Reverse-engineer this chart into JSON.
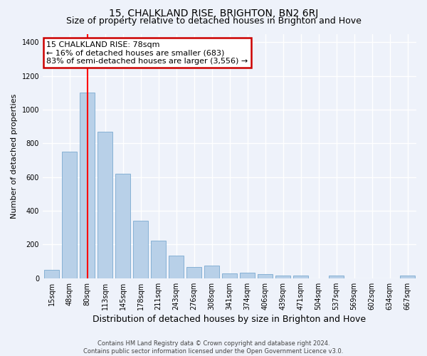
{
  "title": "15, CHALKLAND RISE, BRIGHTON, BN2 6RJ",
  "subtitle": "Size of property relative to detached houses in Brighton and Hove",
  "xlabel": "Distribution of detached houses by size in Brighton and Hove",
  "ylabel": "Number of detached properties",
  "footer1": "Contains HM Land Registry data © Crown copyright and database right 2024.",
  "footer2": "Contains public sector information licensed under the Open Government Licence v3.0.",
  "categories": [
    "15sqm",
    "48sqm",
    "80sqm",
    "113sqm",
    "145sqm",
    "178sqm",
    "211sqm",
    "243sqm",
    "276sqm",
    "308sqm",
    "341sqm",
    "374sqm",
    "406sqm",
    "439sqm",
    "471sqm",
    "504sqm",
    "537sqm",
    "569sqm",
    "602sqm",
    "634sqm",
    "667sqm"
  ],
  "values": [
    50,
    750,
    1100,
    870,
    620,
    340,
    225,
    135,
    65,
    75,
    30,
    35,
    25,
    15,
    15,
    0,
    15,
    0,
    0,
    0,
    15
  ],
  "bar_color": "#b8d0e8",
  "bar_edge_color": "#7aaad0",
  "redline_x": 2,
  "annotation_line1": "15 CHALKLAND RISE: 78sqm",
  "annotation_line2": "← 16% of detached houses are smaller (683)",
  "annotation_line3": "83% of semi-detached houses are larger (3,556) →",
  "annotation_box_color": "#cc0000",
  "ylim": [
    0,
    1450
  ],
  "yticks": [
    0,
    200,
    400,
    600,
    800,
    1000,
    1200,
    1400
  ],
  "bg_color": "#eef2fa",
  "grid_color": "#ffffff",
  "title_fontsize": 10,
  "subtitle_fontsize": 9,
  "ylabel_fontsize": 8,
  "xlabel_fontsize": 9,
  "tick_fontsize": 7,
  "footer_fontsize": 6,
  "annotation_fontsize": 8
}
